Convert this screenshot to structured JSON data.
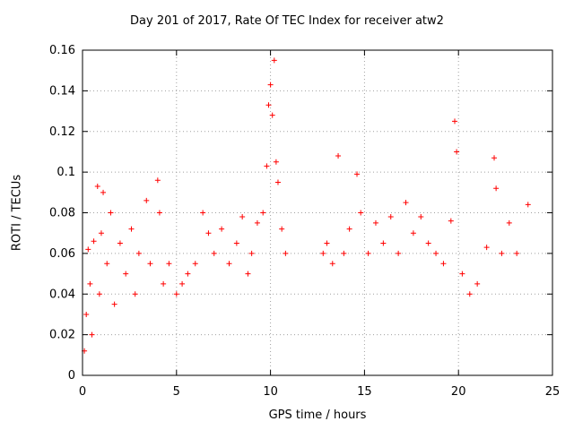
{
  "chart_data": {
    "type": "scatter",
    "title": "Day 201 of 2017, Rate Of TEC Index for receiver atw2",
    "xlabel": "GPS time / hours",
    "ylabel": "ROTI / TECUs",
    "xlim": [
      0,
      25
    ],
    "ylim": [
      0,
      0.16
    ],
    "xticks": [
      0,
      5,
      10,
      15,
      20,
      25
    ],
    "yticks": [
      0,
      0.02,
      0.04,
      0.06,
      0.08,
      0.1,
      0.12,
      0.14,
      0.16
    ],
    "grid": true,
    "marker": "+",
    "color": "#ff0000",
    "data_gap_hours": [
      11.0,
      12.7
    ],
    "series": [
      {
        "points": [
          [
            0.1,
            0.012
          ],
          [
            0.2,
            0.03
          ],
          [
            0.3,
            0.062
          ],
          [
            0.4,
            0.045
          ],
          [
            0.5,
            0.02
          ],
          [
            0.6,
            0.066
          ],
          [
            0.8,
            0.093
          ],
          [
            0.9,
            0.04
          ],
          [
            1.0,
            0.07
          ],
          [
            1.1,
            0.09
          ],
          [
            1.3,
            0.055
          ],
          [
            1.5,
            0.08
          ],
          [
            1.7,
            0.035
          ],
          [
            2.0,
            0.065
          ],
          [
            2.3,
            0.05
          ],
          [
            2.6,
            0.072
          ],
          [
            2.8,
            0.04
          ],
          [
            3.0,
            0.06
          ],
          [
            3.4,
            0.086
          ],
          [
            3.6,
            0.055
          ],
          [
            4.0,
            0.096
          ],
          [
            4.1,
            0.08
          ],
          [
            4.3,
            0.045
          ],
          [
            4.6,
            0.055
          ],
          [
            5.0,
            0.04
          ],
          [
            5.3,
            0.045
          ],
          [
            5.6,
            0.05
          ],
          [
            6.0,
            0.055
          ],
          [
            6.4,
            0.08
          ],
          [
            6.7,
            0.07
          ],
          [
            7.0,
            0.06
          ],
          [
            7.4,
            0.072
          ],
          [
            7.8,
            0.055
          ],
          [
            8.2,
            0.065
          ],
          [
            8.5,
            0.078
          ],
          [
            8.8,
            0.05
          ],
          [
            9.0,
            0.06
          ],
          [
            9.3,
            0.075
          ],
          [
            9.6,
            0.08
          ],
          [
            9.8,
            0.103
          ],
          [
            9.9,
            0.133
          ],
          [
            10.0,
            0.143
          ],
          [
            10.1,
            0.128
          ],
          [
            10.2,
            0.155
          ],
          [
            10.3,
            0.105
          ],
          [
            10.4,
            0.095
          ],
          [
            10.6,
            0.072
          ],
          [
            10.8,
            0.06
          ],
          [
            12.8,
            0.06
          ],
          [
            13.0,
            0.065
          ],
          [
            13.3,
            0.055
          ],
          [
            13.6,
            0.108
          ],
          [
            13.9,
            0.06
          ],
          [
            14.2,
            0.072
          ],
          [
            14.6,
            0.099
          ],
          [
            14.8,
            0.08
          ],
          [
            15.2,
            0.06
          ],
          [
            15.6,
            0.075
          ],
          [
            16.0,
            0.065
          ],
          [
            16.4,
            0.078
          ],
          [
            16.8,
            0.06
          ],
          [
            17.2,
            0.085
          ],
          [
            17.6,
            0.07
          ],
          [
            18.0,
            0.078
          ],
          [
            18.4,
            0.065
          ],
          [
            18.8,
            0.06
          ],
          [
            19.2,
            0.055
          ],
          [
            19.6,
            0.076
          ],
          [
            19.8,
            0.125
          ],
          [
            19.9,
            0.11
          ],
          [
            20.2,
            0.05
          ],
          [
            20.6,
            0.04
          ],
          [
            21.0,
            0.045
          ],
          [
            21.5,
            0.063
          ],
          [
            21.9,
            0.107
          ],
          [
            22.0,
            0.092
          ],
          [
            22.3,
            0.06
          ],
          [
            22.7,
            0.075
          ],
          [
            23.1,
            0.06
          ],
          [
            23.7,
            0.084
          ]
        ]
      }
    ]
  }
}
